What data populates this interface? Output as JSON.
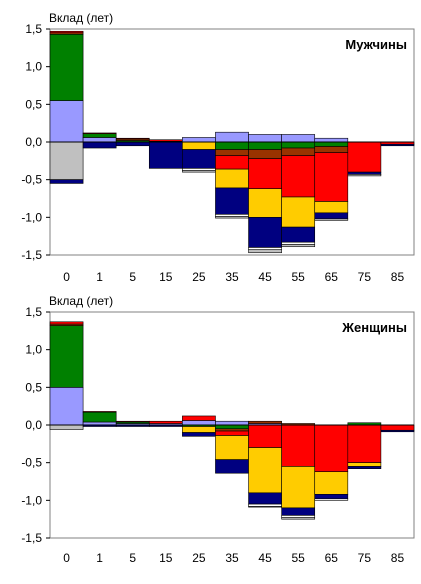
{
  "chart_data": [
    {
      "type": "bar",
      "title": "Мужчины",
      "ylabel": "Вклад (лет)",
      "xlabel": "",
      "categories": [
        "0",
        "1",
        "5",
        "15",
        "25",
        "35",
        "45",
        "55",
        "65",
        "75",
        "85"
      ],
      "ylim": [
        -1.5,
        1.5
      ],
      "yticks": [
        "1,5",
        "1,0",
        "0,5",
        "0,0",
        "-0,5",
        "-1,0",
        "-1,5"
      ],
      "stacked": true,
      "series": [
        {
          "color": "#c0c0c0",
          "values": [
            -0.5,
            0,
            0,
            0,
            0,
            0,
            0,
            0,
            0,
            0,
            0
          ]
        },
        {
          "color": "#9999ff",
          "values": [
            0.55,
            0.06,
            0,
            0,
            0.06,
            0.13,
            0.1,
            0.1,
            0.05,
            0,
            0
          ]
        },
        {
          "color": "#008000",
          "values": [
            0.88,
            0.05,
            0.02,
            0,
            0,
            -0.1,
            -0.1,
            -0.08,
            -0.06,
            0,
            0
          ]
        },
        {
          "color": "#993300",
          "values": [
            0.02,
            0,
            0.02,
            0.01,
            0,
            -0.08,
            -0.12,
            -0.1,
            -0.08,
            0,
            0
          ]
        },
        {
          "color": "#ff0000",
          "values": [
            0.02,
            0.01,
            0.01,
            0.02,
            0,
            -0.18,
            -0.4,
            -0.55,
            -0.65,
            -0.4,
            -0.03
          ]
        },
        {
          "color": "#ffcc00",
          "values": [
            0,
            0,
            0,
            0,
            -0.1,
            -0.25,
            -0.38,
            -0.4,
            -0.15,
            0,
            0
          ]
        },
        {
          "color": "#000080",
          "values": [
            -0.05,
            -0.08,
            -0.05,
            -0.35,
            -0.25,
            -0.35,
            -0.4,
            -0.2,
            -0.08,
            -0.03,
            -0.02
          ]
        },
        {
          "color": "#ffffff",
          "values": [
            0,
            0,
            0,
            0,
            -0.03,
            -0.03,
            -0.03,
            -0.03,
            0,
            0,
            0
          ]
        },
        {
          "color": "#c0c0c0",
          "values": [
            0,
            0,
            0,
            0,
            -0.02,
            -0.02,
            -0.04,
            -0.03,
            -0.02,
            -0.02,
            0
          ]
        }
      ]
    },
    {
      "type": "bar",
      "title": "Женщины",
      "ylabel": "Вклад (лет)",
      "xlabel": "",
      "categories": [
        "0",
        "1",
        "5",
        "15",
        "25",
        "35",
        "45",
        "55",
        "65",
        "75",
        "85"
      ],
      "ylim": [
        -1.5,
        1.5
      ],
      "yticks": [
        "1,5",
        "1,0",
        "0,5",
        "0,0",
        "-0,5",
        "-1,0",
        "-1,5"
      ],
      "stacked": true,
      "series": [
        {
          "color": "#c0c0c0",
          "values": [
            -0.06,
            0,
            0,
            0,
            0,
            0,
            0,
            0,
            0,
            0,
            0
          ]
        },
        {
          "color": "#9999ff",
          "values": [
            0.5,
            0.04,
            0.02,
            0.02,
            0.06,
            0.05,
            0.02,
            0,
            0,
            0,
            0
          ]
        },
        {
          "color": "#008000",
          "values": [
            0.82,
            0.13,
            0.02,
            0,
            -0.02,
            -0.05,
            0,
            0,
            0,
            0.03,
            0
          ]
        },
        {
          "color": "#993300",
          "values": [
            0.02,
            0,
            0,
            0,
            0,
            -0.03,
            0.03,
            0.02,
            0,
            0,
            0
          ]
        },
        {
          "color": "#ff0000",
          "values": [
            0.03,
            0.01,
            0.01,
            0.03,
            0.06,
            -0.06,
            -0.3,
            -0.55,
            -0.62,
            -0.5,
            -0.07
          ]
        },
        {
          "color": "#ffcc00",
          "values": [
            0,
            0,
            0,
            0,
            -0.08,
            -0.32,
            -0.6,
            -0.55,
            -0.3,
            -0.05,
            0
          ]
        },
        {
          "color": "#000080",
          "values": [
            0,
            -0.02,
            -0.02,
            -0.02,
            -0.05,
            -0.18,
            -0.15,
            -0.1,
            -0.06,
            -0.03,
            -0.02
          ]
        },
        {
          "color": "#ffffff",
          "values": [
            0,
            0,
            0,
            0,
            0,
            0,
            -0.03,
            -0.03,
            -0.02,
            0,
            0
          ]
        },
        {
          "color": "#c0c0c0",
          "values": [
            0,
            0,
            0,
            0,
            0,
            0,
            -0.01,
            -0.02,
            0,
            0,
            0
          ]
        }
      ]
    }
  ]
}
